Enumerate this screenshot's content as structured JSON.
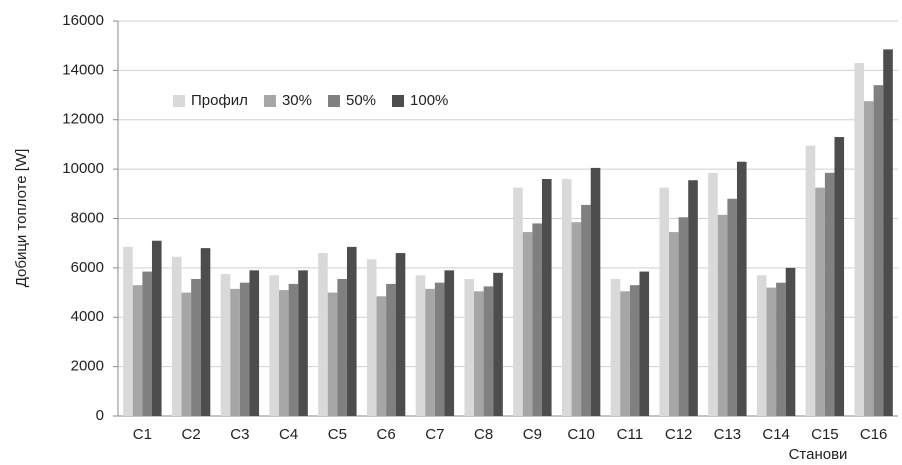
{
  "chart_data": {
    "type": "bar",
    "y_label": "Добици топлоте [W]",
    "x_label": "Станови",
    "categories": [
      "C1",
      "C2",
      "C3",
      "C4",
      "C5",
      "C6",
      "C7",
      "C8",
      "C9",
      "C10",
      "C11",
      "C12",
      "C13",
      "C14",
      "C15",
      "C16"
    ],
    "series": [
      {
        "name": "Профил",
        "color": "#d9d9d9",
        "values": [
          6850,
          6450,
          5750,
          5700,
          6600,
          6350,
          5700,
          5550,
          9250,
          9600,
          5550,
          9250,
          9850,
          5700,
          10950,
          14300
        ]
      },
      {
        "name": "30%",
        "color": "#a6a6a6",
        "values": [
          5300,
          5000,
          5150,
          5100,
          5000,
          4850,
          5150,
          5050,
          7450,
          7850,
          5050,
          7450,
          8150,
          5200,
          9250,
          12750
        ]
      },
      {
        "name": "50%",
        "color": "#808080",
        "values": [
          5850,
          5550,
          5400,
          5350,
          5550,
          5350,
          5400,
          5250,
          7800,
          8550,
          5300,
          8050,
          8800,
          5400,
          9850,
          13400
        ]
      },
      {
        "name": "100%",
        "color": "#4d4d4d",
        "values": [
          7100,
          6800,
          5900,
          5900,
          6850,
          6600,
          5900,
          5800,
          9600,
          10050,
          5850,
          9550,
          10300,
          6000,
          11300,
          14850
        ]
      }
    ],
    "ylim": [
      0,
      16000
    ],
    "yticks": [
      0,
      2000,
      4000,
      6000,
      8000,
      10000,
      12000,
      14000,
      16000
    ],
    "grid": true,
    "legend_loc": "upper left"
  }
}
